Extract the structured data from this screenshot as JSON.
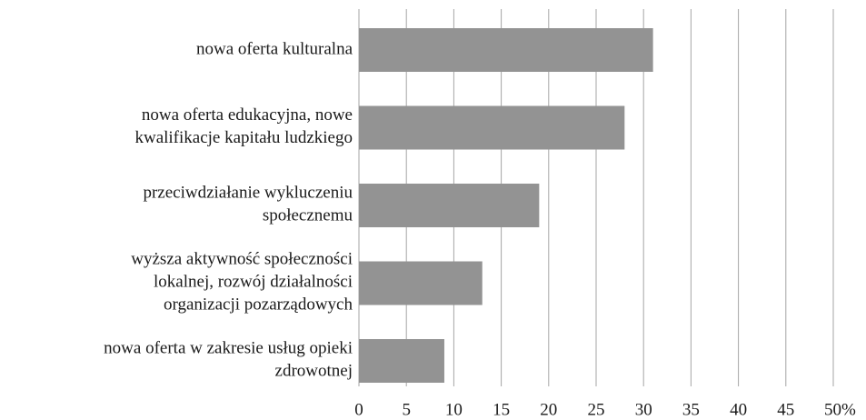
{
  "chart_data": {
    "type": "barh",
    "categories": [
      "nowa oferta kulturalna",
      "nowa oferta edukacyjna, nowe\nkwalifikacje kapitału ludzkiego",
      "przeciwdziałanie wykluczeniu\nspołecznemu",
      "wyższa aktywność społeczności\nlokalnej, rozwój działalności\norganizacji pozarządowych",
      "nowa oferta w zakresie usług opieki\nzdrowotnej"
    ],
    "values": [
      31,
      28,
      19,
      13,
      9
    ],
    "color": "#939393",
    "xlim": [
      0,
      50
    ],
    "xticks": [
      0,
      5,
      10,
      15,
      20,
      25,
      30,
      35,
      40,
      45,
      {
        "value": 50,
        "label": "50%"
      }
    ],
    "grid": true
  }
}
